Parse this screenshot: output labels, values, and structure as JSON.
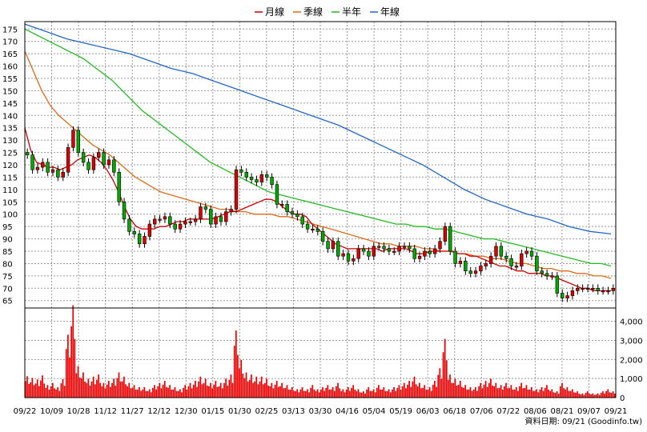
{
  "chart_data": [
    {
      "type": "candlestick",
      "legend": [
        {
          "name": "月線",
          "color": "#cc0000"
        },
        {
          "name": "季線",
          "color": "#e06a1b"
        },
        {
          "name": "半年",
          "color": "#22bb22"
        },
        {
          "name": "年線",
          "color": "#2266cc"
        }
      ],
      "legend_placement": "top-center",
      "ylim": [
        62,
        178
      ],
      "y_ticks": [
        65,
        70,
        75,
        80,
        85,
        90,
        95,
        100,
        105,
        110,
        115,
        120,
        125,
        130,
        135,
        140,
        145,
        150,
        155,
        160,
        165,
        170,
        175
      ],
      "x_ticks": [
        "09/22",
        "10/09",
        "10/28",
        "11/12",
        "11/27",
        "12/12",
        "12/30",
        "01/15",
        "01/30",
        "02/25",
        "03/13",
        "03/30",
        "04/16",
        "05/04",
        "05/19",
        "06/03",
        "06/18",
        "07/06",
        "07/22",
        "08/06",
        "08/21",
        "09/07",
        "09/21"
      ],
      "grid": true,
      "close": [
        124,
        118,
        119,
        121,
        117,
        118,
        115,
        117,
        127,
        134,
        125,
        121,
        118,
        123,
        125,
        120,
        122,
        117,
        105,
        98,
        93,
        92,
        88,
        91,
        96,
        98,
        98,
        99,
        96,
        94,
        96,
        97,
        97,
        98,
        103,
        102,
        96,
        99,
        97,
        101,
        102,
        118,
        117,
        115,
        114,
        113,
        116,
        115,
        112,
        104,
        104,
        101,
        100,
        99,
        96,
        94,
        94,
        93,
        89,
        86,
        89,
        83,
        84,
        81,
        82,
        86,
        85,
        83,
        87,
        87,
        86,
        85,
        85,
        87,
        87,
        86,
        82,
        83,
        85,
        84,
        86,
        89,
        95,
        85,
        80,
        81,
        77,
        76,
        77,
        79,
        80,
        83,
        87,
        83,
        82,
        79,
        79,
        84,
        85,
        83,
        77,
        76,
        75,
        75,
        68,
        66,
        67,
        69,
        70,
        70,
        70,
        70,
        69,
        69,
        69,
        70
      ],
      "volume": [
        1020,
        940,
        870,
        1060,
        600,
        700,
        500,
        880,
        3000,
        4400,
        1500,
        1200,
        900,
        1000,
        1100,
        700,
        800,
        900,
        1200,
        1000,
        700,
        600,
        500,
        500,
        400,
        600,
        700,
        800,
        600,
        500,
        400,
        600,
        700,
        800,
        1000,
        900,
        700,
        800,
        700,
        900,
        1100,
        3200,
        1800,
        1200,
        1100,
        1000,
        1000,
        900,
        700,
        800,
        700,
        600,
        500,
        400,
        500,
        400,
        600,
        400,
        500,
        600,
        500,
        700,
        400,
        500,
        600,
        400,
        300,
        500,
        400,
        600,
        500,
        400,
        500,
        600,
        700,
        800,
        1000,
        700,
        600,
        500,
        800,
        1400,
        2800,
        1100,
        900,
        800,
        600,
        500,
        500,
        700,
        800,
        900,
        700,
        600,
        700,
        600,
        500,
        700,
        600,
        500,
        400,
        500,
        600,
        400,
        300,
        700,
        500,
        400,
        300,
        200,
        300,
        200,
        200,
        300,
        400,
        300
      ],
      "ma_month": [
        135,
        126,
        121,
        120,
        119,
        119,
        118,
        119,
        120,
        122,
        123,
        124,
        123,
        121,
        118,
        114,
        109,
        103,
        98,
        95,
        94,
        94,
        94,
        95,
        95,
        96,
        97,
        97,
        98,
        98,
        98,
        98,
        98,
        99,
        100,
        101,
        101,
        102,
        103,
        104,
        105,
        106,
        106,
        105,
        103,
        101,
        100,
        100,
        99,
        96,
        94,
        92,
        90,
        88,
        87,
        86,
        86,
        86,
        86,
        86,
        86,
        85,
        86,
        86,
        86,
        86,
        85,
        84,
        84,
        85,
        85,
        85,
        85,
        85,
        84,
        84,
        83,
        83,
        82,
        81,
        80,
        79,
        79,
        78,
        77,
        77,
        76,
        76,
        76,
        75,
        75,
        74,
        73,
        72,
        71,
        70,
        70,
        69,
        69,
        69,
        69
      ],
      "ma_quarter": [
        166,
        158,
        150,
        144,
        140,
        137,
        134,
        131,
        128,
        126,
        124,
        121,
        118,
        115,
        113,
        111,
        109,
        108,
        107,
        106,
        105,
        104,
        103,
        102,
        102,
        101,
        101,
        100,
        100,
        100,
        99,
        99,
        98,
        97,
        96,
        95,
        94,
        93,
        92,
        91,
        90,
        89,
        88,
        88,
        87,
        87,
        87,
        86,
        86,
        85,
        85,
        84,
        84,
        83,
        83,
        82,
        82,
        81,
        80,
        80,
        79,
        78,
        78,
        77,
        77,
        76,
        76,
        75,
        75,
        74
      ],
      "ma_half": [
        175,
        173,
        171,
        169,
        167,
        165,
        163,
        160,
        157,
        154,
        150,
        146,
        142,
        139,
        136,
        133,
        130,
        127,
        124,
        121,
        119,
        117,
        115,
        113,
        111,
        109,
        108,
        107,
        106,
        105,
        104,
        103,
        102,
        101,
        100,
        99,
        98,
        97,
        96,
        96,
        95,
        95,
        94,
        94,
        93,
        92,
        91,
        90,
        90,
        89,
        88,
        87,
        86,
        85,
        84,
        83,
        82,
        81,
        80,
        80,
        79
      ],
      "ma_year": [
        177,
        174,
        171,
        169,
        167,
        165,
        162,
        159,
        157,
        154,
        151,
        148,
        145,
        142,
        139,
        136,
        132,
        128,
        124,
        120,
        115,
        110,
        106,
        103,
        100,
        98,
        95,
        93,
        92
      ]
    },
    {
      "type": "bar",
      "name": "volume",
      "y_ticks": [
        0,
        1000,
        2000,
        3000,
        4000
      ],
      "y_tick_labels": [
        "0",
        "1,000",
        "2,000",
        "3,000",
        "4,000"
      ],
      "ylim": [
        0,
        4700
      ]
    }
  ],
  "footer": {
    "text": "資料日期: 09/21  (Goodinfo.tw)"
  },
  "colors": {
    "up": "#dd0000",
    "down": "#00aa00",
    "volume": "#ee0000",
    "grid": "#9a9a9a"
  }
}
